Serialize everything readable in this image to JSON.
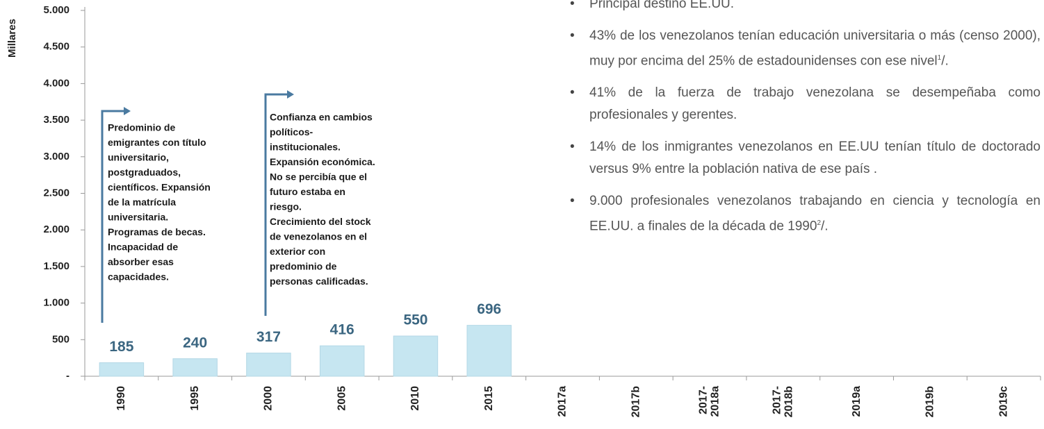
{
  "chart_data": {
    "type": "bar",
    "y_axis_label": "Millares",
    "categories": [
      "1990",
      "1995",
      "2000",
      "2005",
      "2010",
      "2015",
      "2017a",
      "2017b",
      "2017-2018a",
      "2017-2018b",
      "2019a",
      "2019b",
      "2019c"
    ],
    "values": [
      185,
      240,
      317,
      416,
      550,
      696,
      null,
      null,
      null,
      null,
      null,
      null,
      null
    ],
    "color": "#c6e6f1",
    "ylim": [
      0,
      5000
    ],
    "yticks": [
      {
        "value": 0,
        "label": "-"
      },
      500,
      {
        "value": 1000,
        "label": "1.000"
      },
      {
        "value": 1500,
        "label": "1.500"
      },
      {
        "value": 2000,
        "label": "2.000"
      },
      {
        "value": 2500,
        "label": "2.500"
      },
      {
        "value": 3000,
        "label": "3.000"
      },
      {
        "value": 3500,
        "label": "3.500"
      },
      {
        "value": 4000,
        "label": "4.000"
      },
      {
        "value": 4500,
        "label": "4.500"
      },
      {
        "value": 5000,
        "label": "5.000"
      }
    ],
    "annotations": [
      {
        "lines": [
          "Predominio de",
          "emigrantes con título",
          "universitario,",
          "postgraduados,",
          "científicos. Expansión",
          "de la matrícula",
          "universitaria.",
          "Programas de becas.",
          "Incapacidad de",
          "absorber esas",
          "capacidades."
        ]
      },
      {
        "lines": [
          "Confianza en cambios",
          "políticos-",
          "institucionales.",
          "Expansión económica.",
          "No se percibía que el",
          "futuro estaba en",
          "riesgo.",
          "Crecimiento del stock",
          "de venezolanos en el",
          "exterior con",
          "predominio de",
          "personas calificadas."
        ]
      }
    ]
  },
  "bullets": [
    {
      "text": "Principal destino EE.UU."
    },
    {
      "text": "43% de los venezolanos tenían educación universitaria o más (censo 2000),  muy por encima del 25% de estadounidenses con ese nivel",
      "sup": "1",
      "tail": "/."
    },
    {
      "text": "41% de la fuerza de trabajo venezolana se desempeñaba como profesionales y gerentes."
    },
    {
      "text": "14% de los inmigrantes venezolanos en EE.UU tenían título de doctorado versus  9% entre la población nativa de ese país ."
    },
    {
      "text": "9.000 profesionales venezolanos trabajando en ciencia y tecnología en EE.UU. a finales de la década de 1990",
      "sup": "2",
      "tail": "/."
    }
  ]
}
